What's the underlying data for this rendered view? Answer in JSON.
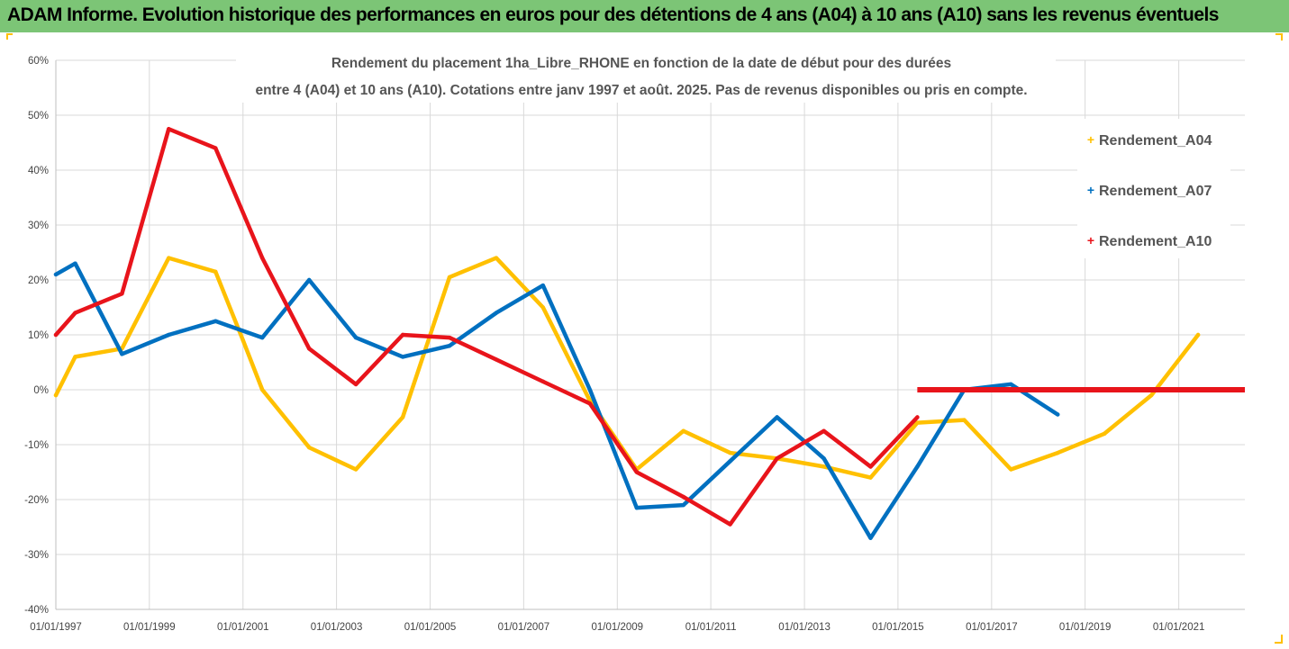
{
  "header": {
    "title": "ADAM Informe. Evolution historique des performances en euros pour des détentions de 4 ans (A04) à 10 ans (A10) sans les revenus éventuels",
    "background_color": "#7cc576"
  },
  "chart_data": {
    "type": "line",
    "title_line1": "Rendement du placement 1ha_Libre_RHONE en fonction de la date de début pour des durées",
    "title_line2": "entre 4 (A04) et 10 ans (A10). Cotations entre janv 1997 et août. 2025. Pas de revenus disponibles ou pris en compte.",
    "xlabel": "",
    "ylabel": "",
    "x_range": [
      "1997-01-01",
      "2022-06-01"
    ],
    "ylim": [
      -40,
      60
    ],
    "y_ticks": [
      "-40%",
      "-30%",
      "-20%",
      "-10%",
      "0%",
      "10%",
      "20%",
      "30%",
      "40%",
      "50%",
      "60%"
    ],
    "x_ticks": [
      "01/01/1997",
      "01/01/1999",
      "01/01/2001",
      "01/01/2003",
      "01/01/2005",
      "01/01/2007",
      "01/01/2009",
      "01/01/2011",
      "01/01/2013",
      "01/01/2015",
      "01/01/2017",
      "01/01/2019",
      "01/01/2021"
    ],
    "grid": true,
    "legend_position": "top-right",
    "series": [
      {
        "name": "Rendement_A04",
        "color": "#ffc000",
        "points": [
          [
            "1997-01-01",
            -1
          ],
          [
            "1997-06-01",
            6
          ],
          [
            "1998-06-01",
            7.5
          ],
          [
            "1999-06-01",
            24
          ],
          [
            "2000-06-01",
            21.5
          ],
          [
            "2001-01-01",
            9
          ],
          [
            "2001-06-01",
            0
          ],
          [
            "2002-06-01",
            -10.5
          ],
          [
            "2003-06-01",
            -14.5
          ],
          [
            "2004-06-01",
            -5
          ],
          [
            "2005-06-01",
            20.5
          ],
          [
            "2006-06-01",
            24
          ],
          [
            "2007-06-01",
            15
          ],
          [
            "2008-06-01",
            -2
          ],
          [
            "2009-06-01",
            -14.5
          ],
          [
            "2010-06-01",
            -7.5
          ],
          [
            "2011-06-01",
            -11.5
          ],
          [
            "2012-06-01",
            -12.5
          ],
          [
            "2013-06-01",
            -14
          ],
          [
            "2014-06-01",
            -16
          ],
          [
            "2015-06-01",
            -6
          ],
          [
            "2016-06-01",
            -5.5
          ],
          [
            "2017-06-01",
            -14.5
          ],
          [
            "2018-06-01",
            -11.5
          ],
          [
            "2019-06-01",
            -8
          ],
          [
            "2020-06-01",
            -1
          ],
          [
            "2021-06-01",
            10
          ]
        ]
      },
      {
        "name": "Rendement_A07",
        "color": "#0070c0",
        "points": [
          [
            "1997-01-01",
            21
          ],
          [
            "1997-06-01",
            23
          ],
          [
            "1998-06-01",
            6.5
          ],
          [
            "1999-06-01",
            10
          ],
          [
            "2000-06-01",
            12.5
          ],
          [
            "2001-06-01",
            9.5
          ],
          [
            "2002-06-01",
            20
          ],
          [
            "2003-06-01",
            9.5
          ],
          [
            "2004-06-01",
            6
          ],
          [
            "2005-06-01",
            8
          ],
          [
            "2006-06-01",
            14
          ],
          [
            "2007-06-01",
            19
          ],
          [
            "2008-06-01",
            0
          ],
          [
            "2009-06-01",
            -21.5
          ],
          [
            "2010-06-01",
            -21
          ],
          [
            "2011-06-01",
            -13
          ],
          [
            "2012-06-01",
            -5
          ],
          [
            "2013-06-01",
            -12.5
          ],
          [
            "2014-06-01",
            -27
          ],
          [
            "2015-06-01",
            -14
          ],
          [
            "2016-06-01",
            0
          ],
          [
            "2017-06-01",
            1
          ],
          [
            "2018-06-01",
            -4.5
          ]
        ]
      },
      {
        "name": "Rendement_A10",
        "color": "#e8141b",
        "points": [
          [
            "1997-01-01",
            10
          ],
          [
            "1997-06-01",
            14
          ],
          [
            "1998-06-01",
            17.5
          ],
          [
            "1999-06-01",
            47.5
          ],
          [
            "2000-06-01",
            44
          ],
          [
            "2001-06-01",
            24
          ],
          [
            "2002-06-01",
            7.5
          ],
          [
            "2003-06-01",
            1
          ],
          [
            "2004-06-01",
            10
          ],
          [
            "2005-06-01",
            9.5
          ],
          [
            "2006-06-01",
            5.5
          ],
          [
            "2007-06-01",
            1.5
          ],
          [
            "2008-06-01",
            -2.5
          ],
          [
            "2009-06-01",
            -15
          ],
          [
            "2010-06-01",
            -19.5
          ],
          [
            "2011-06-01",
            -24.5
          ],
          [
            "2012-06-01",
            -12.5
          ],
          [
            "2013-06-01",
            -7.5
          ],
          [
            "2014-06-01",
            -14
          ],
          [
            "2015-06-01",
            -5
          ]
        ],
        "flat_segment": [
          [
            "2015-06-01",
            0
          ],
          [
            "2022-06-01",
            0
          ]
        ]
      }
    ]
  }
}
